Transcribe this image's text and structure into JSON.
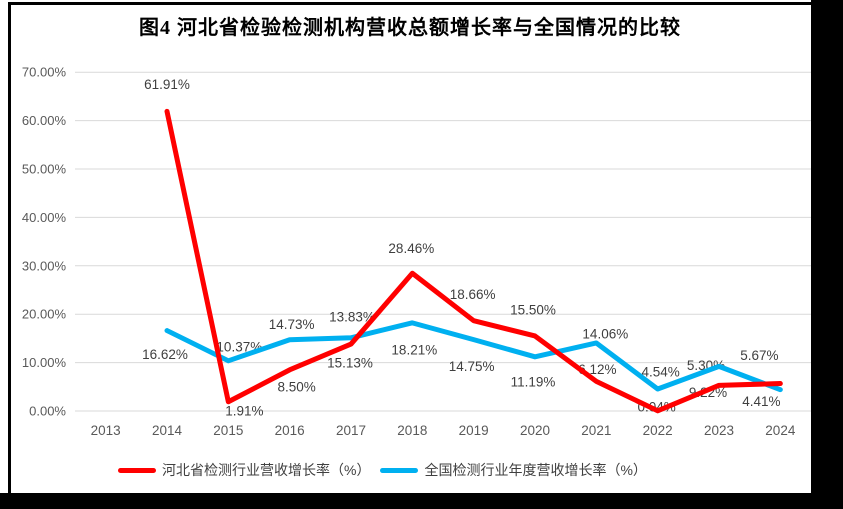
{
  "figure": {
    "frame_color": "#000000",
    "background": "#FFFFFF"
  },
  "header": {
    "title": "图4 河北省检验检测机构营收总额增长率与全国情况的比较"
  },
  "chart_data": {
    "type": "line",
    "title": "图4 河北省检验检测机构营收总额增长率与全国情况的比较",
    "categories": [
      "2013",
      "2014",
      "2015",
      "2016",
      "2017",
      "2018",
      "2019",
      "2020",
      "2021",
      "2022",
      "2023",
      "2024"
    ],
    "series": [
      {
        "name": "河北省检测行业营收增长率（%）",
        "color": "#FF0000",
        "values": [
          null,
          61.91,
          1.91,
          8.5,
          13.83,
          28.46,
          18.66,
          15.5,
          6.12,
          0.04,
          5.3,
          5.67
        ],
        "label_dx": [
          null,
          0,
          16,
          7,
          1,
          -1,
          -1,
          -2,
          1,
          -1,
          -13,
          -21
        ],
        "label_dy": [
          null,
          -27,
          9,
          17,
          -27,
          -25,
          -26,
          -26,
          -12,
          -4,
          -20,
          -28
        ]
      },
      {
        "name": "全国检测行业年度营收增长率（%）",
        "color": "#00B0F0",
        "values": [
          null,
          16.62,
          10.37,
          14.73,
          15.13,
          18.21,
          14.75,
          11.19,
          14.06,
          4.54,
          9.22,
          4.41
        ],
        "label_dx": [
          null,
          -2,
          11,
          2,
          -1,
          2,
          -2,
          -2,
          9,
          3,
          -11,
          -19
        ],
        "label_dy": [
          null,
          24,
          -14,
          -15,
          25,
          27,
          27,
          25,
          -9,
          -17,
          26,
          12
        ]
      }
    ],
    "ylim": [
      0,
      70
    ],
    "ytick_values": [
      0,
      10,
      20,
      30,
      40,
      50,
      60,
      70
    ],
    "ytick_labels": [
      "0.00%",
      "10.00%",
      "20.00%",
      "30.00%",
      "40.00%",
      "50.00%",
      "60.00%",
      "70.00%"
    ],
    "grid": true,
    "data_labels": "percent-2dp",
    "legend_position": "bottom",
    "colors": {
      "grid": "#D9D9D9",
      "tick_label": "#595959",
      "data_label": "#3F3F3F"
    }
  }
}
